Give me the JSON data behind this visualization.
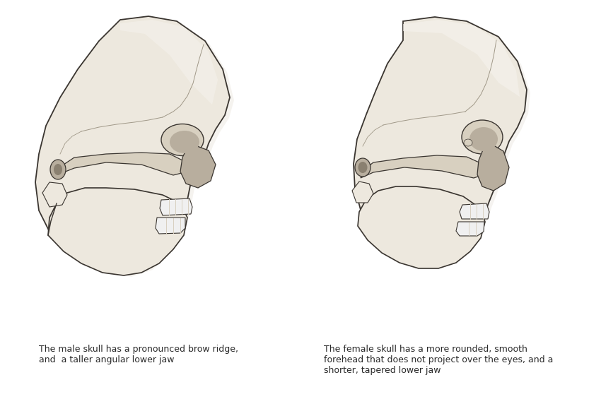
{
  "background_color": "#ffffff",
  "left_text_line1": "The male skull has a pronounced brow ridge,",
  "left_text_line2": "and  a taller angular lower jaw",
  "right_text_line1": "The female skull has a more rounded, smooth",
  "right_text_line2": "forehead that does not project over the eyes, and a",
  "right_text_line3": "shorter, tapered lower jaw",
  "text_color": "#2a2a2a",
  "text_fontsize": 9.0,
  "skull_base": "#ede8de",
  "skull_light": "#f5f2ec",
  "skull_mid": "#d8d0c0",
  "skull_dark": "#b8ae9e",
  "skull_outline": "#3a3530",
  "suture_color": "#a09888",
  "teeth_color": "#f0f0f0",
  "shadow_color": "#c8c0b0",
  "fig_width": 8.5,
  "fig_height": 5.89
}
